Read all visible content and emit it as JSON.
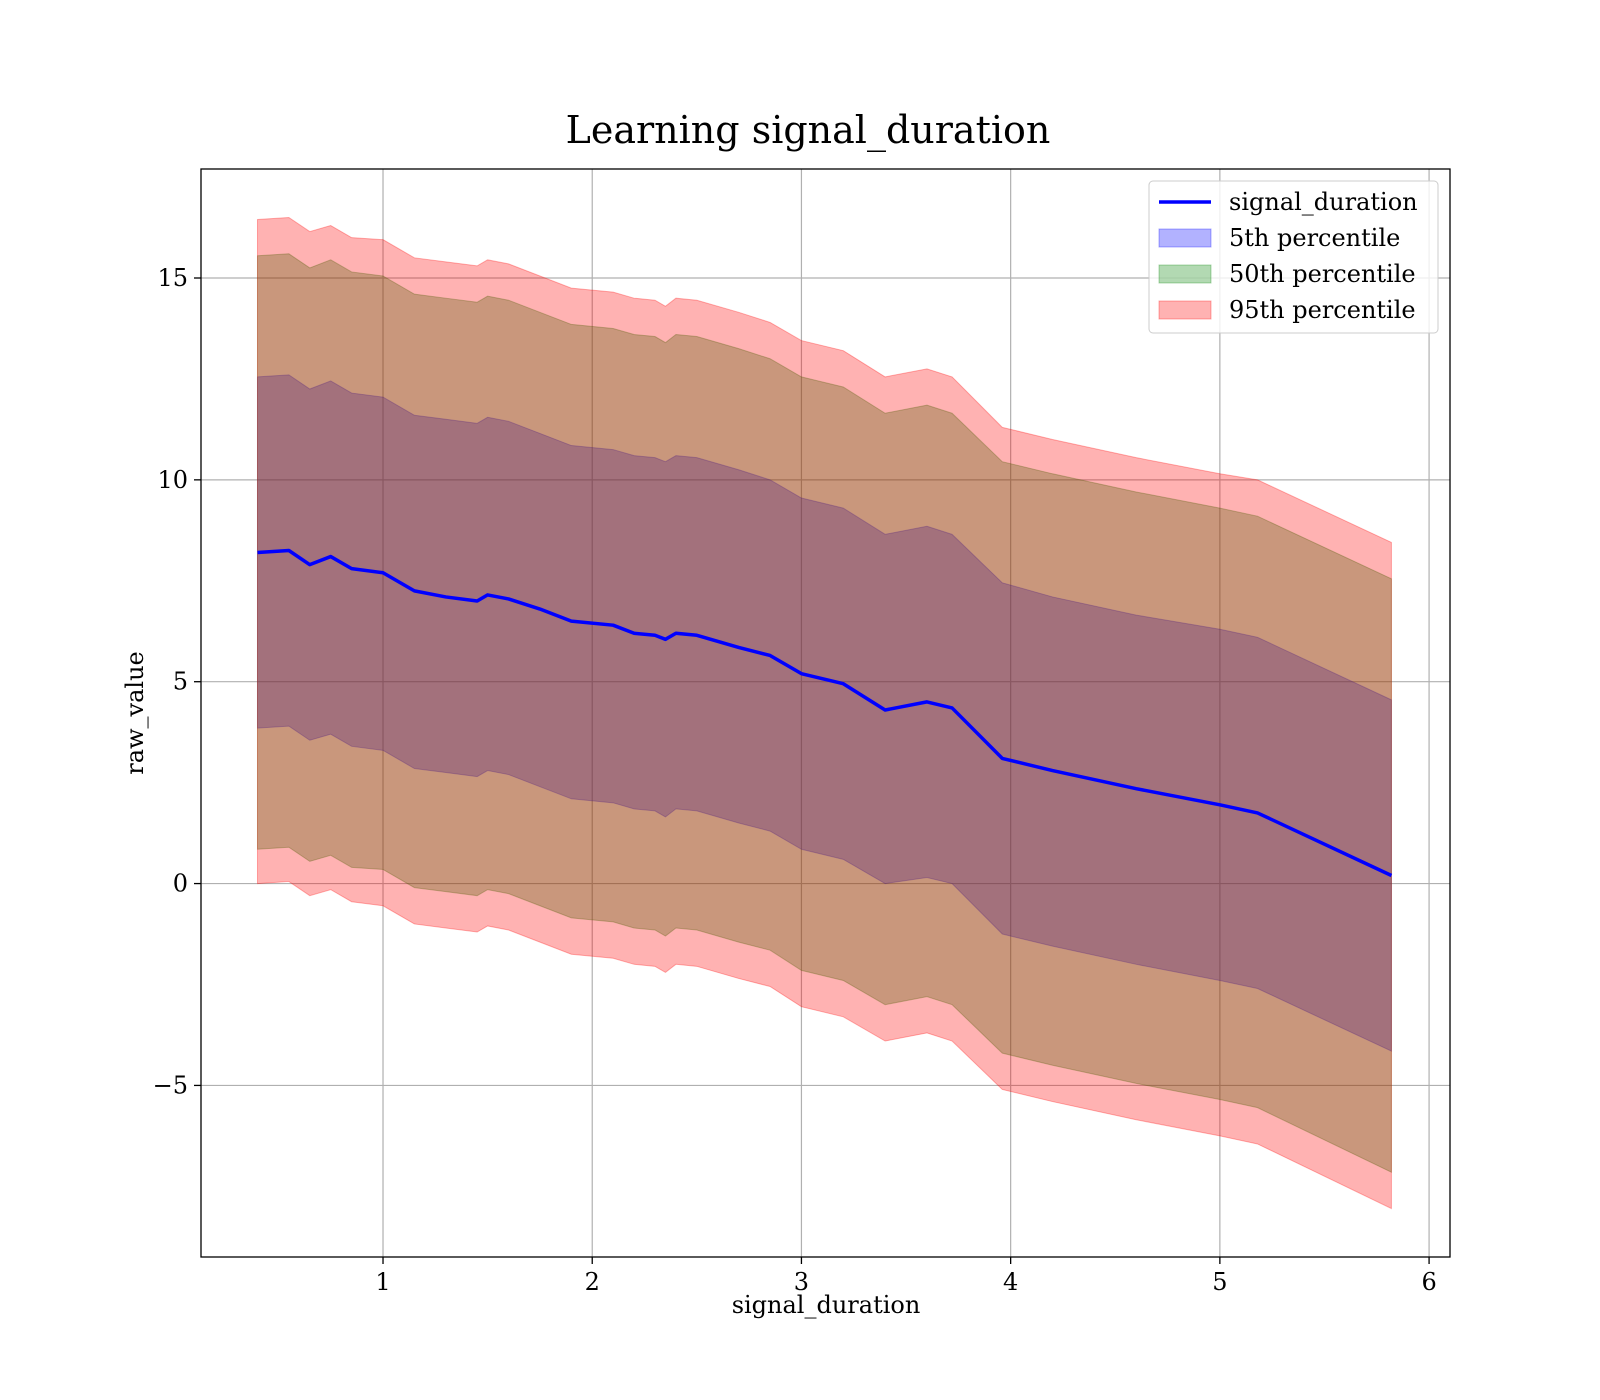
{
  "chart_data": {
    "type": "line",
    "title": "Learning signal_duration",
    "xlabel": "signal_duration",
    "ylabel": "raw_value",
    "xlim": [
      0.13,
      6.1
    ],
    "ylim": [
      -9.25,
      17.7
    ],
    "xticks": [
      1,
      2,
      3,
      4,
      5,
      6
    ],
    "yticks": [
      -5,
      0,
      5,
      10,
      15
    ],
    "xtick_labels": [
      "1",
      "2",
      "3",
      "4",
      "5",
      "6"
    ],
    "ytick_labels": [
      "−5",
      "0",
      "5",
      "10",
      "15"
    ],
    "grid": true,
    "legend_position": "top-right",
    "x": [
      0.4,
      0.55,
      0.65,
      0.75,
      0.85,
      1.0,
      1.15,
      1.3,
      1.45,
      1.5,
      1.6,
      1.75,
      1.9,
      2.1,
      2.2,
      2.3,
      2.35,
      2.4,
      2.5,
      2.7,
      2.85,
      3.0,
      3.2,
      3.4,
      3.6,
      3.72,
      3.96,
      4.2,
      4.6,
      5.0,
      5.18,
      5.82
    ],
    "series": [
      {
        "name": "signal_duration",
        "kind": "line",
        "color": "#0000ff",
        "values": [
          8.2,
          8.25,
          7.9,
          8.1,
          7.8,
          7.7,
          7.25,
          7.1,
          7.0,
          7.15,
          7.05,
          6.8,
          6.5,
          6.4,
          6.2,
          6.15,
          6.05,
          6.2,
          6.15,
          5.85,
          5.65,
          5.2,
          4.95,
          4.3,
          4.5,
          4.35,
          3.1,
          2.8,
          2.35,
          1.95,
          1.75,
          0.2
        ]
      },
      {
        "name": "5th percentile",
        "kind": "band",
        "color": "#0000ff",
        "lower": [
          3.85,
          3.9,
          3.55,
          3.7,
          3.4,
          3.3,
          2.85,
          2.75,
          2.65,
          2.8,
          2.7,
          2.4,
          2.1,
          2.0,
          1.85,
          1.8,
          1.65,
          1.85,
          1.8,
          1.5,
          1.3,
          0.85,
          0.6,
          0.0,
          0.15,
          0.0,
          -1.25,
          -1.55,
          -2.0,
          -2.4,
          -2.6,
          -4.15
        ],
        "upper": [
          12.55,
          12.6,
          12.25,
          12.45,
          12.15,
          12.05,
          11.6,
          11.5,
          11.4,
          11.55,
          11.45,
          11.15,
          10.85,
          10.75,
          10.6,
          10.55,
          10.45,
          10.6,
          10.55,
          10.25,
          10.0,
          9.55,
          9.3,
          8.65,
          8.85,
          8.65,
          7.45,
          7.1,
          6.65,
          6.3,
          6.1,
          4.55
        ]
      },
      {
        "name": "50th percentile",
        "kind": "band",
        "color": "#008000",
        "lower": [
          0.85,
          0.9,
          0.55,
          0.7,
          0.4,
          0.35,
          -0.1,
          -0.2,
          -0.3,
          -0.15,
          -0.25,
          -0.55,
          -0.85,
          -0.95,
          -1.1,
          -1.15,
          -1.3,
          -1.1,
          -1.15,
          -1.45,
          -1.65,
          -2.15,
          -2.4,
          -3.0,
          -2.8,
          -3.0,
          -4.2,
          -4.5,
          -4.95,
          -5.35,
          -5.55,
          -7.15
        ],
        "upper": [
          15.55,
          15.6,
          15.25,
          15.45,
          15.15,
          15.05,
          14.6,
          14.5,
          14.4,
          14.55,
          14.45,
          14.15,
          13.85,
          13.75,
          13.6,
          13.55,
          13.4,
          13.6,
          13.55,
          13.25,
          13.0,
          12.55,
          12.3,
          11.65,
          11.85,
          11.65,
          10.45,
          10.15,
          9.7,
          9.3,
          9.1,
          7.55
        ]
      },
      {
        "name": "95th percentile",
        "kind": "band",
        "color": "#ff0000",
        "lower": [
          0.0,
          0.05,
          -0.3,
          -0.15,
          -0.45,
          -0.55,
          -1.0,
          -1.1,
          -1.2,
          -1.05,
          -1.15,
          -1.45,
          -1.75,
          -1.85,
          -2.0,
          -2.05,
          -2.2,
          -2.0,
          -2.05,
          -2.35,
          -2.55,
          -3.05,
          -3.3,
          -3.9,
          -3.7,
          -3.9,
          -5.1,
          -5.4,
          -5.85,
          -6.25,
          -6.45,
          -8.05
        ],
        "upper": [
          16.45,
          16.5,
          16.15,
          16.3,
          16.0,
          15.95,
          15.5,
          15.4,
          15.3,
          15.45,
          15.35,
          15.05,
          14.75,
          14.65,
          14.5,
          14.45,
          14.3,
          14.5,
          14.45,
          14.15,
          13.9,
          13.45,
          13.2,
          12.55,
          12.75,
          12.55,
          11.3,
          11.0,
          10.55,
          10.15,
          10.0,
          8.45
        ]
      }
    ]
  }
}
